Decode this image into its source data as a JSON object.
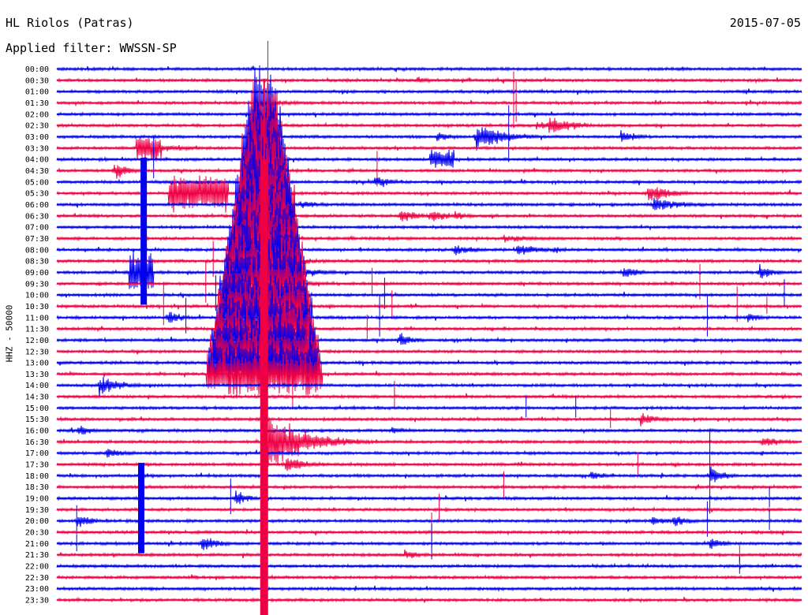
{
  "header": {
    "station": "HL Riolos (Patras)",
    "date": "2015-07-05",
    "filter": "Applied filter: WWSSN-SP"
  },
  "chart_data": {
    "type": "line",
    "ylabel": "HHZ - 50000",
    "tick_labels": [
      "00:00",
      "00:30",
      "01:00",
      "01:30",
      "02:00",
      "02:30",
      "03:00",
      "03:30",
      "04:00",
      "04:30",
      "05:00",
      "05:30",
      "06:00",
      "06:30",
      "07:00",
      "07:30",
      "08:00",
      "08:30",
      "09:00",
      "09:30",
      "10:00",
      "10:30",
      "11:00",
      "11:30",
      "12:00",
      "12:30",
      "13:00",
      "13:30",
      "14:00",
      "14:30",
      "15:00",
      "15:30",
      "16:00",
      "16:30",
      "17:00",
      "17:30",
      "18:00",
      "18:30",
      "19:00",
      "19:30",
      "20:00",
      "20:30",
      "21:00",
      "21:30",
      "22:00",
      "22:30",
      "23:00",
      "23:30"
    ],
    "x_range_minutes": [
      0,
      30
    ],
    "trace_colors": [
      "#0000ee",
      "#ee0044"
    ],
    "events": [
      {
        "trace": "01:30",
        "minute": 8.0,
        "amp": 8,
        "dur": 1.3
      },
      {
        "trace": "00:30",
        "minute": 14.5,
        "amp": 5,
        "dur": 0.8
      },
      {
        "trace": "02:30",
        "minute": 19.8,
        "amp": 16,
        "dur": 1.0
      },
      {
        "trace": "03:00",
        "minute": 16.9,
        "amp": 20,
        "dur": 1.2
      },
      {
        "trace": "02:30",
        "minute": 19.5,
        "amp": 6,
        "dur": 0.7
      },
      {
        "trace": "02:30",
        "minute": 19.3,
        "amp": 6,
        "dur": 1.0
      },
      {
        "trace": "03:00",
        "minute": 22.7,
        "amp": 10,
        "dur": 0.8
      },
      {
        "trace": "03:30",
        "minute": 3.3,
        "amp": 10,
        "dur": 1.5
      },
      {
        "trace": "03:30",
        "minute": 3.7,
        "amp": 18,
        "dur": 0.5,
        "burst": true
      },
      {
        "trace": "04:00",
        "minute": 15.5,
        "amp": 14,
        "dur": 0.5,
        "burst": true
      },
      {
        "trace": "04:30",
        "minute": 2.3,
        "amp": 14,
        "dur": 0.6
      },
      {
        "trace": "05:30",
        "minute": 5.7,
        "amp": 26,
        "dur": 1.2,
        "burst": true
      },
      {
        "trace": "05:00",
        "minute": 12.8,
        "amp": 12,
        "dur": 0.6
      },
      {
        "trace": "06:00",
        "minute": 8.1,
        "amp": 10,
        "dur": 0.8
      },
      {
        "trace": "06:00",
        "minute": 9.8,
        "amp": 8,
        "dur": 0.8
      },
      {
        "trace": "05:30",
        "minute": 23.8,
        "amp": 14,
        "dur": 1.0
      },
      {
        "trace": "06:00",
        "minute": 24.0,
        "amp": 10,
        "dur": 1.5
      },
      {
        "trace": "06:30",
        "minute": 13.8,
        "amp": 10,
        "dur": 1.0
      },
      {
        "trace": "06:30",
        "minute": 15.0,
        "amp": 10,
        "dur": 0.8
      },
      {
        "trace": "06:30",
        "minute": 16.0,
        "amp": 8,
        "dur": 0.6
      },
      {
        "trace": "08:00",
        "minute": 18.5,
        "amp": 10,
        "dur": 1.0
      },
      {
        "trace": "08:00",
        "minute": 16.0,
        "amp": 10,
        "dur": 0.8
      },
      {
        "trace": "09:00",
        "minute": 3.4,
        "amp": 30,
        "dur": 0.5,
        "burst": true
      },
      {
        "trace": "09:00",
        "minute": 22.8,
        "amp": 12,
        "dur": 0.6
      },
      {
        "trace": "09:00",
        "minute": 28.3,
        "amp": 14,
        "dur": 0.5
      },
      {
        "trace": "11:00",
        "minute": 4.5,
        "amp": 12,
        "dur": 0.5
      },
      {
        "trace": "11:00",
        "minute": 27.8,
        "amp": 10,
        "dur": 0.5
      },
      {
        "trace": "12:00",
        "minute": 13.8,
        "amp": 14,
        "dur": 0.5
      },
      {
        "trace": "14:00",
        "minute": 1.7,
        "amp": 16,
        "dur": 0.9
      },
      {
        "trace": "15:30",
        "minute": 23.5,
        "amp": 10,
        "dur": 0.8
      },
      {
        "trace": "16:00",
        "minute": 0.8,
        "amp": 8,
        "dur": 0.8
      },
      {
        "trace": "16:30",
        "minute": 8.5,
        "amp": 50,
        "dur": 0.9
      },
      {
        "trace": "16:30",
        "minute": 8.6,
        "amp": 40,
        "dur": 1.5
      },
      {
        "trace": "16:30",
        "minute": 28.4,
        "amp": 8,
        "dur": 1.0
      },
      {
        "trace": "17:00",
        "minute": 2.0,
        "amp": 8,
        "dur": 1.0
      },
      {
        "trace": "17:30",
        "minute": 9.2,
        "amp": 12,
        "dur": 1.0
      },
      {
        "trace": "18:00",
        "minute": 26.3,
        "amp": 14,
        "dur": 0.6
      },
      {
        "trace": "18:00",
        "minute": 21.5,
        "amp": 8,
        "dur": 0.6
      },
      {
        "trace": "19:00",
        "minute": 7.2,
        "amp": 14,
        "dur": 0.5
      },
      {
        "trace": "20:00",
        "minute": 0.8,
        "amp": 14,
        "dur": 0.5
      },
      {
        "trace": "20:00",
        "minute": 24.8,
        "amp": 10,
        "dur": 0.6
      },
      {
        "trace": "20:00",
        "minute": 23.9,
        "amp": 8,
        "dur": 0.8
      },
      {
        "trace": "21:00",
        "minute": 5.8,
        "amp": 12,
        "dur": 0.7
      },
      {
        "trace": "21:30",
        "minute": 14.0,
        "amp": 8,
        "dur": 0.6
      },
      {
        "trace": "21:00",
        "minute": 26.3,
        "amp": 10,
        "dur": 0.6
      },
      {
        "trace": "08:00",
        "minute": 20.0,
        "amp": 6,
        "dur": 0.6
      },
      {
        "trace": "03:00",
        "minute": 15.3,
        "amp": 8,
        "dur": 0.7
      },
      {
        "trace": "07:30",
        "minute": 18.0,
        "amp": 6,
        "dur": 1.5
      },
      {
        "trace": "16:00",
        "minute": 13.5,
        "amp": 6,
        "dur": 0.6
      }
    ],
    "spikes": [
      {
        "trace": "06:00",
        "minute": 8.4,
        "amp": 70
      },
      {
        "trace": "00:30",
        "minute": 8.5,
        "amp": 50
      },
      {
        "trace": "01:30",
        "minute": 18.4,
        "amp": 40
      },
      {
        "trace": "04:00",
        "minute": 3.9,
        "amp": 30
      },
      {
        "trace": "10:30",
        "minute": 8.2,
        "amp": 40
      },
      {
        "trace": "11:00",
        "minute": 5.2,
        "amp": 25
      },
      {
        "trace": "10:30",
        "minute": 4.3,
        "amp": 30
      },
      {
        "trace": "09:30",
        "minute": 6.0,
        "amp": 30
      },
      {
        "trace": "08:30",
        "minute": 6.3,
        "amp": 25
      },
      {
        "trace": "10:00",
        "minute": 6.4,
        "amp": 25
      },
      {
        "trace": "11:00",
        "minute": 13.0,
        "amp": 30
      },
      {
        "trace": "10:00",
        "minute": 13.2,
        "amp": 22
      },
      {
        "trace": "10:30",
        "minute": 13.5,
        "amp": 20
      },
      {
        "trace": "04:30",
        "minute": 12.9,
        "amp": 25
      },
      {
        "trace": "09:30",
        "minute": 12.7,
        "amp": 20
      },
      {
        "trace": "03:00",
        "minute": 18.2,
        "amp": 40
      },
      {
        "trace": "01:30",
        "minute": 18.5,
        "amp": 30
      },
      {
        "trace": "11:30",
        "minute": 12.5,
        "amp": 18
      },
      {
        "trace": "11:00",
        "minute": 26.2,
        "amp": 30
      },
      {
        "trace": "10:30",
        "minute": 27.4,
        "amp": 25
      },
      {
        "trace": "09:30",
        "minute": 25.9,
        "amp": 25
      },
      {
        "trace": "14:30",
        "minute": 13.6,
        "amp": 20
      },
      {
        "trace": "15:00",
        "minute": 20.9,
        "amp": 15
      },
      {
        "trace": "15:30",
        "minute": 22.3,
        "amp": 14
      },
      {
        "trace": "17:30",
        "minute": 23.4,
        "amp": 15
      },
      {
        "trace": "18:00",
        "minute": 26.3,
        "amp": 60
      },
      {
        "trace": "20:00",
        "minute": 26.2,
        "amp": 25
      },
      {
        "trace": "20:30",
        "minute": 15.1,
        "amp": 25
      },
      {
        "trace": "21:00",
        "minute": 15.1,
        "amp": 25
      },
      {
        "trace": "19:30",
        "minute": 15.4,
        "amp": 20
      },
      {
        "trace": "18:30",
        "minute": 18.0,
        "amp": 20
      },
      {
        "trace": "19:00",
        "minute": 7.0,
        "amp": 25
      },
      {
        "trace": "20:00",
        "minute": 0.8,
        "amp": 20
      },
      {
        "trace": "21:00",
        "minute": 0.8,
        "amp": 12
      },
      {
        "trace": "22:00",
        "minute": 27.5,
        "amp": 12
      },
      {
        "trace": "21:30",
        "minute": 27.5,
        "amp": 12
      },
      {
        "trace": "20:00",
        "minute": 28.7,
        "amp": 14
      },
      {
        "trace": "19:00",
        "minute": 28.7,
        "amp": 14
      },
      {
        "trace": "10:30",
        "minute": 28.6,
        "amp": 12
      },
      {
        "trace": "10:00",
        "minute": 29.3,
        "amp": 20
      },
      {
        "trace": "14:30",
        "minute": 9.5,
        "amp": 20
      },
      {
        "trace": "13:30",
        "minute": 9.5,
        "amp": 18
      },
      {
        "trace": "15:00",
        "minute": 18.9,
        "amp": 15
      }
    ],
    "big_event": {
      "trace": "02:00",
      "minute": 8.35,
      "amp": 70,
      "duration_traces": 24
    }
  }
}
